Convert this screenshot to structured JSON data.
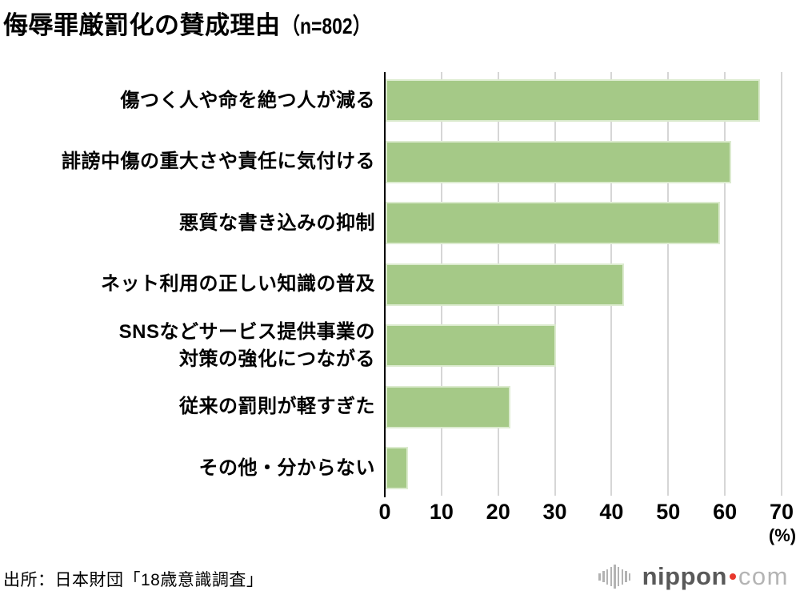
{
  "title": {
    "main": "侮辱罪厳罰化の賛成理由",
    "sample": "（n=802）"
  },
  "chart_data": {
    "type": "bar",
    "orientation": "horizontal",
    "title": "侮辱罪厳罰化の賛成理由（n=802）",
    "categories": [
      "傷つく人や命を絶つ人が減る",
      "誹謗中傷の重大さや責任に気付ける",
      "悪質な書き込みの抑制",
      "ネット利用の正しい知識の普及",
      "SNSなどサービス提供事業の\n対策の強化につながる",
      "従来の罰則が軽すぎた",
      "その他・分からない"
    ],
    "values": [
      66,
      61,
      59,
      42,
      30,
      22,
      4
    ],
    "xlabel": "(%)",
    "xlim": [
      0,
      70
    ],
    "xticks": [
      0,
      10,
      20,
      30,
      40,
      50,
      60,
      70
    ],
    "grid": true,
    "bar_color": "#a5c987",
    "gridline_color": "#d6d6d6"
  },
  "footer": {
    "source": "出所：日本財団「18歳意識調査」",
    "logo": {
      "icon": "soundwave-bars-icon",
      "word": "nippon",
      "tld": "com"
    }
  }
}
